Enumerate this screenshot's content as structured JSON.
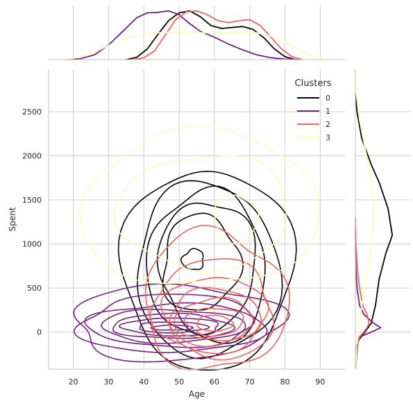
{
  "chart_data": {
    "type": "kde-joint",
    "xlabel": "Age",
    "ylabel": "Spent",
    "xlim": [
      13,
      97
    ],
    "ylim": [
      -420,
      2980
    ],
    "x_ticks": [
      20,
      30,
      40,
      50,
      60,
      70,
      80,
      90
    ],
    "y_ticks": [
      0,
      500,
      1000,
      1500,
      2000,
      2500
    ],
    "grid": true,
    "legend": {
      "title": "Clusters",
      "position": "top-right",
      "entries": [
        "0",
        "1",
        "2",
        "3"
      ]
    },
    "series": [
      {
        "name": "0",
        "color": "#000004",
        "contours": [
          {
            "cx": 58,
            "cy": 720,
            "rx": 24,
            "ry": 1150,
            "jitter": 0.05
          },
          {
            "cx": 58,
            "cy": 700,
            "rx": 20,
            "ry": 1000,
            "jitter": 0.05
          },
          {
            "cx": 58,
            "cy": 740,
            "rx": 17,
            "ry": 850,
            "jitter": 0.06
          },
          {
            "cx": 58,
            "cy": 760,
            "rx": 14,
            "ry": 720,
            "jitter": 0.06
          },
          {
            "cx": 56,
            "cy": 780,
            "rx": 11,
            "ry": 540,
            "jitter": 0.08
          },
          {
            "cx": 54,
            "cy": 820,
            "rx": 3,
            "ry": 120,
            "jitter": 0.1
          }
        ],
        "top_kde": {
          "x": [
            35,
            38,
            41,
            44,
            47,
            50,
            53,
            56,
            59,
            62,
            65,
            68,
            71,
            74,
            77,
            80,
            83
          ],
          "y": [
            0.0,
            0.05,
            0.22,
            0.52,
            0.8,
            0.96,
            1.0,
            0.88,
            0.7,
            0.64,
            0.66,
            0.68,
            0.62,
            0.45,
            0.22,
            0.06,
            0.0
          ]
        },
        "right_kde": {
          "y": [
            -420,
            -100,
            0,
            100,
            300,
            600,
            900,
            1100,
            1400,
            1700,
            1900,
            2200,
            2500,
            2700
          ],
          "d": [
            0.0,
            0.05,
            0.18,
            0.3,
            0.38,
            0.45,
            0.58,
            0.7,
            0.62,
            0.45,
            0.3,
            0.12,
            0.03,
            0.0
          ]
        }
      },
      {
        "name": "1",
        "color": "#721f81",
        "contours": [
          {
            "cx": 49,
            "cy": 110,
            "rx": 30,
            "ry": 420,
            "jitter": 0.08
          },
          {
            "cx": 48,
            "cy": 90,
            "rx": 26,
            "ry": 330,
            "jitter": 0.07
          },
          {
            "cx": 48,
            "cy": 80,
            "rx": 23,
            "ry": 250,
            "jitter": 0.07
          },
          {
            "cx": 48,
            "cy": 70,
            "rx": 20,
            "ry": 190,
            "jitter": 0.06
          },
          {
            "cx": 48,
            "cy": 65,
            "rx": 17,
            "ry": 140,
            "jitter": 0.06
          },
          {
            "cx": 48,
            "cy": 60,
            "rx": 14,
            "ry": 100,
            "jitter": 0.06
          },
          {
            "cx": 48,
            "cy": 55,
            "rx": 10,
            "ry": 60,
            "jitter": 0.06
          },
          {
            "cx": 48,
            "cy": 50,
            "rx": 6,
            "ry": 28,
            "jitter": 0.05
          }
        ],
        "top_kde": {
          "x": [
            18,
            22,
            26,
            30,
            34,
            38,
            41,
            44,
            47,
            50,
            53,
            56,
            60,
            64,
            68,
            72,
            76,
            80,
            84
          ],
          "y": [
            0.0,
            0.02,
            0.1,
            0.3,
            0.58,
            0.86,
            0.96,
            0.97,
            1.0,
            0.92,
            0.74,
            0.58,
            0.46,
            0.32,
            0.2,
            0.1,
            0.04,
            0.01,
            0.0
          ]
        },
        "right_kde": {
          "y": [
            -420,
            -150,
            -50,
            0,
            50,
            100,
            200,
            300,
            500,
            700,
            900,
            1200
          ],
          "d": [
            0.0,
            0.02,
            0.1,
            0.3,
            0.48,
            0.35,
            0.16,
            0.08,
            0.03,
            0.01,
            0.0,
            0.0
          ]
        }
      },
      {
        "name": "2",
        "color": "#f1605d",
        "contours": [
          {
            "cx": 60,
            "cy": 350,
            "rx": 20,
            "ry": 800,
            "jitter": 0.07
          },
          {
            "cx": 60,
            "cy": 260,
            "rx": 17,
            "ry": 560,
            "jitter": 0.07
          },
          {
            "cx": 60,
            "cy": 200,
            "rx": 15,
            "ry": 420,
            "jitter": 0.06
          },
          {
            "cx": 60,
            "cy": 170,
            "rx": 13,
            "ry": 320,
            "jitter": 0.06
          },
          {
            "cx": 60,
            "cy": 140,
            "rx": 11,
            "ry": 240,
            "jitter": 0.06
          },
          {
            "cx": 60,
            "cy": 120,
            "rx": 8,
            "ry": 160,
            "jitter": 0.06
          },
          {
            "cx": 60,
            "cy": 100,
            "rx": 5,
            "ry": 90,
            "jitter": 0.05
          }
        ],
        "top_kde": {
          "x": [
            37,
            40,
            43,
            46,
            49,
            52,
            55,
            58,
            61,
            64,
            67,
            70,
            73,
            76,
            79,
            82,
            85
          ],
          "y": [
            0.0,
            0.04,
            0.18,
            0.5,
            0.82,
            0.98,
            1.0,
            0.92,
            0.8,
            0.76,
            0.8,
            0.82,
            0.7,
            0.46,
            0.22,
            0.06,
            0.0
          ]
        },
        "right_kde": {
          "y": [
            -420,
            -150,
            -50,
            0,
            50,
            100,
            200,
            300,
            500,
            700,
            1000,
            1300
          ],
          "d": [
            0.0,
            0.02,
            0.08,
            0.16,
            0.22,
            0.26,
            0.22,
            0.14,
            0.08,
            0.04,
            0.01,
            0.0
          ]
        }
      },
      {
        "name": "3",
        "color": "#fcfdbf",
        "contours": [
          {
            "cx": 56,
            "cy": 1390,
            "rx": 34,
            "ry": 880,
            "jitter": 0.05
          },
          {
            "cx": 57,
            "cy": 1360,
            "rx": 24,
            "ry": 660,
            "jitter": 0.05
          },
          {
            "cx": 66,
            "cy": 1280,
            "rx": 6,
            "ry": 280,
            "jitter": 0.06
          }
        ],
        "top_kde": {
          "x": [
            16,
            20,
            24,
            28,
            32,
            36,
            40,
            44,
            48,
            52,
            56,
            60,
            64,
            68,
            72,
            76,
            80,
            84,
            88,
            92
          ],
          "y": [
            0.0,
            0.03,
            0.1,
            0.22,
            0.36,
            0.46,
            0.52,
            0.55,
            0.56,
            0.56,
            0.55,
            0.55,
            0.56,
            0.57,
            0.55,
            0.48,
            0.36,
            0.2,
            0.07,
            0.0
          ]
        },
        "right_kde": {
          "y": [
            -420,
            0,
            300,
            600,
            900,
            1200,
            1500,
            1800,
            2100,
            2400,
            2700,
            2980
          ],
          "d": [
            0.0,
            0.05,
            0.12,
            0.2,
            0.28,
            0.34,
            0.34,
            0.28,
            0.18,
            0.08,
            0.02,
            0.0
          ]
        }
      }
    ]
  }
}
